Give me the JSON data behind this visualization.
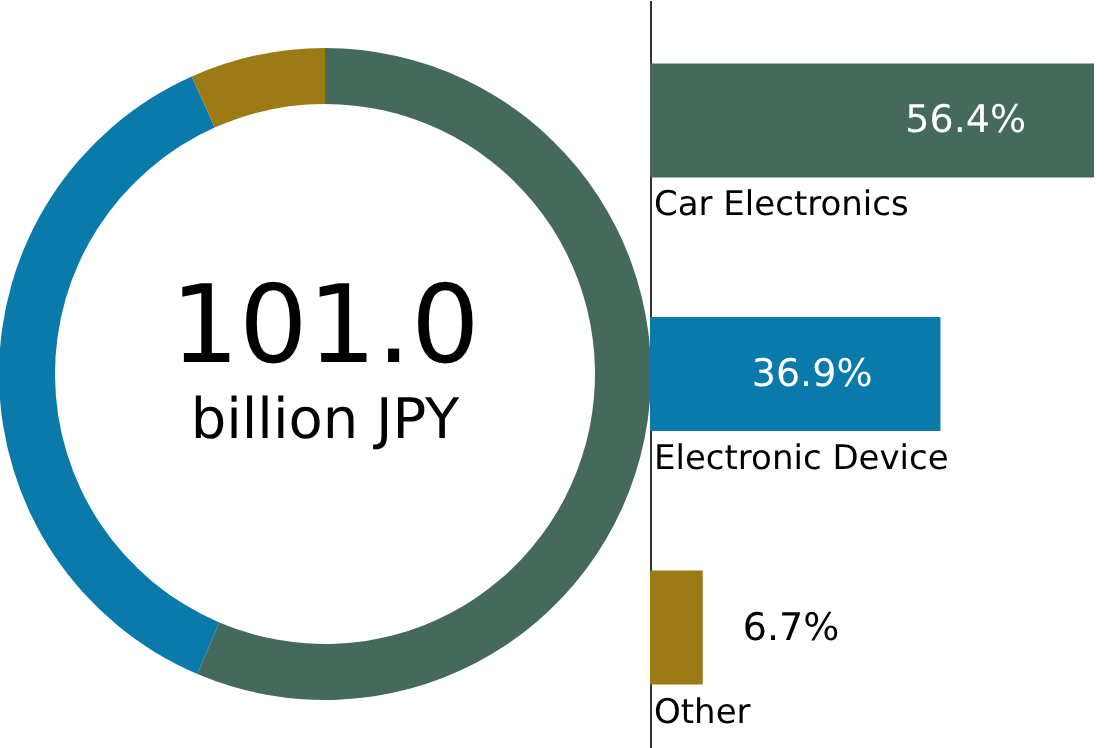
{
  "chart_data": [
    {
      "type": "donut",
      "categories": [
        null,
        null,
        null
      ],
      "values": [
        56.4,
        36.9,
        6.7
      ],
      "colors": [
        "#45695a",
        "#0a7aab",
        "#9c7a16"
      ],
      "annotations": [
        "101.0",
        "billion JPY"
      ]
    },
    {
      "type": "bar",
      "orientation": "horizontal",
      "categories": [
        "Car Electronics",
        "Electronic Device",
        "Other"
      ],
      "values": [
        56.4,
        36.9,
        6.7
      ],
      "colors": [
        "#45695a",
        "#0a7aab",
        "#9c7a16"
      ],
      "value_labels": [
        "56.4%",
        "36.9%",
        "6.7%"
      ]
    }
  ]
}
